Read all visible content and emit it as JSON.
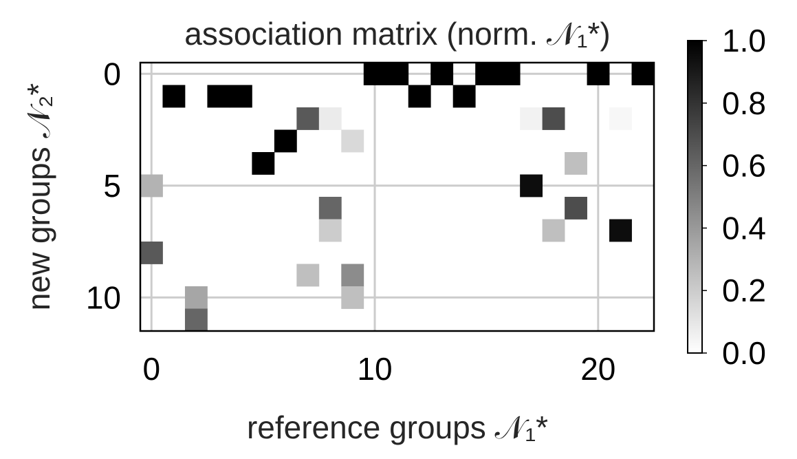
{
  "chart_data": {
    "type": "heatmap",
    "title": "association matrix (norm. 𝒩₁*)",
    "xlabel": "reference groups 𝒩₁*",
    "ylabel": "new groups 𝒩₂*",
    "xlim": [
      -0.5,
      22.5
    ],
    "ylim": [
      11.5,
      -0.5
    ],
    "n_cols": 23,
    "n_rows": 12,
    "xticks": [
      0,
      10,
      20
    ],
    "yticks": [
      0,
      5,
      10
    ],
    "grid": true,
    "colormap": "Greys",
    "colorbar": {
      "range": [
        0.0,
        1.0
      ],
      "ticks": [
        0.0,
        0.2,
        0.4,
        0.6,
        0.8,
        1.0
      ],
      "tick_labels": [
        "0.0",
        "0.2",
        "0.4",
        "0.6",
        "0.8",
        "1.0"
      ]
    },
    "cells": [
      {
        "row": 0,
        "col": 10,
        "value": 1.0
      },
      {
        "row": 0,
        "col": 11,
        "value": 1.0
      },
      {
        "row": 0,
        "col": 13,
        "value": 1.0
      },
      {
        "row": 0,
        "col": 15,
        "value": 1.0
      },
      {
        "row": 0,
        "col": 16,
        "value": 1.0
      },
      {
        "row": 0,
        "col": 20,
        "value": 1.0
      },
      {
        "row": 0,
        "col": 22,
        "value": 1.0
      },
      {
        "row": 1,
        "col": 1,
        "value": 1.0
      },
      {
        "row": 1,
        "col": 3,
        "value": 1.0
      },
      {
        "row": 1,
        "col": 4,
        "value": 1.0
      },
      {
        "row": 1,
        "col": 12,
        "value": 1.0
      },
      {
        "row": 1,
        "col": 14,
        "value": 1.0
      },
      {
        "row": 2,
        "col": 7,
        "value": 0.65
      },
      {
        "row": 2,
        "col": 8,
        "value": 0.08
      },
      {
        "row": 2,
        "col": 17,
        "value": 0.05
      },
      {
        "row": 2,
        "col": 18,
        "value": 0.7
      },
      {
        "row": 2,
        "col": 21,
        "value": 0.03
      },
      {
        "row": 3,
        "col": 6,
        "value": 1.0
      },
      {
        "row": 3,
        "col": 9,
        "value": 0.15
      },
      {
        "row": 4,
        "col": 5,
        "value": 1.0
      },
      {
        "row": 4,
        "col": 19,
        "value": 0.25
      },
      {
        "row": 5,
        "col": 0,
        "value": 0.3
      },
      {
        "row": 5,
        "col": 17,
        "value": 0.95
      },
      {
        "row": 6,
        "col": 8,
        "value": 0.6
      },
      {
        "row": 6,
        "col": 19,
        "value": 0.7
      },
      {
        "row": 7,
        "col": 8,
        "value": 0.2
      },
      {
        "row": 7,
        "col": 18,
        "value": 0.25
      },
      {
        "row": 7,
        "col": 21,
        "value": 0.95
      },
      {
        "row": 8,
        "col": 0,
        "value": 0.65
      },
      {
        "row": 9,
        "col": 7,
        "value": 0.25
      },
      {
        "row": 9,
        "col": 9,
        "value": 0.45
      },
      {
        "row": 10,
        "col": 2,
        "value": 0.35
      },
      {
        "row": 10,
        "col": 9,
        "value": 0.25
      },
      {
        "row": 11,
        "col": 2,
        "value": 0.6
      }
    ]
  }
}
